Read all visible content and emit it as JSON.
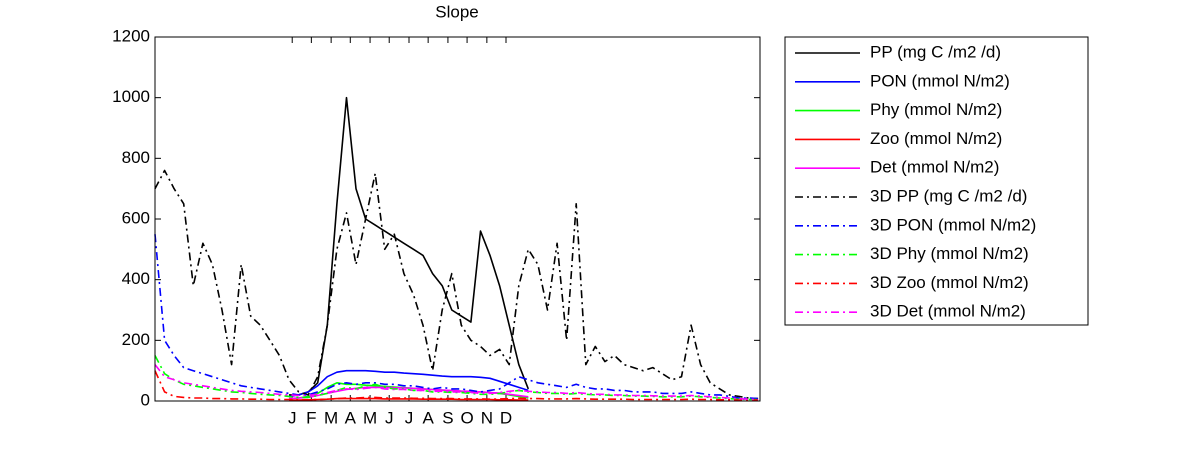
{
  "chart_data": {
    "type": "line",
    "title": "Slope",
    "x": [
      0,
      15,
      30,
      45,
      60,
      75,
      90,
      105,
      120,
      135,
      150,
      165,
      180,
      195,
      210,
      225,
      240,
      255,
      270,
      285,
      300,
      315,
      330,
      345,
      360,
      375,
      390,
      405,
      420,
      435,
      450,
      465,
      480,
      495,
      510,
      525,
      540,
      555,
      570,
      585,
      600,
      615,
      630,
      645,
      660,
      675,
      690,
      705,
      720,
      735,
      750,
      765,
      780,
      795,
      810,
      825,
      840,
      855,
      870,
      885,
      900,
      915,
      930,
      945
    ],
    "xlim": [
      0,
      948
    ],
    "xticks": [
      {
        "value": 215,
        "label": "J"
      },
      {
        "value": 245,
        "label": "F"
      },
      {
        "value": 276,
        "label": "M"
      },
      {
        "value": 306,
        "label": "A"
      },
      {
        "value": 337,
        "label": "M"
      },
      {
        "value": 367,
        "label": "J"
      },
      {
        "value": 398,
        "label": "J"
      },
      {
        "value": 428,
        "label": "A"
      },
      {
        "value": 459,
        "label": "S"
      },
      {
        "value": 489,
        "label": "O"
      },
      {
        "value": 520,
        "label": "N"
      },
      {
        "value": 550,
        "label": "D"
      }
    ],
    "ylim": [
      0,
      1200
    ],
    "yticks": [
      0,
      200,
      400,
      600,
      800,
      1000,
      1200
    ],
    "grid": false,
    "legend": "outside-right",
    "series": [
      {
        "name": "PP (mg C /m2 /d)",
        "color": "#000000",
        "dash": "solid",
        "values": [
          null,
          null,
          null,
          null,
          null,
          null,
          null,
          null,
          null,
          null,
          null,
          null,
          null,
          null,
          20,
          20,
          30,
          60,
          250,
          650,
          1000,
          700,
          600,
          580,
          560,
          540,
          520,
          500,
          480,
          420,
          380,
          300,
          280,
          260,
          560,
          480,
          380,
          250,
          120,
          40,
          null,
          null,
          null,
          null,
          null,
          null,
          null,
          null,
          null,
          null,
          null,
          null,
          null,
          null,
          null,
          null,
          null,
          null,
          null,
          null,
          null,
          null,
          null,
          null
        ]
      },
      {
        "name": "PON (mmol N/m2)",
        "color": "#0000ff",
        "dash": "solid",
        "values": [
          null,
          null,
          null,
          null,
          null,
          null,
          null,
          null,
          null,
          null,
          null,
          null,
          null,
          null,
          15,
          20,
          30,
          50,
          80,
          95,
          100,
          100,
          100,
          98,
          95,
          95,
          92,
          90,
          88,
          85,
          82,
          80,
          80,
          80,
          78,
          75,
          65,
          55,
          45,
          35,
          null,
          null,
          null,
          null,
          null,
          null,
          null,
          null,
          null,
          null,
          null,
          null,
          null,
          null,
          null,
          null,
          null,
          null,
          null,
          null,
          null,
          null,
          null,
          null
        ]
      },
      {
        "name": "Phy (mmol N/m2)",
        "color": "#00ff00",
        "dash": "solid",
        "values": [
          null,
          null,
          null,
          null,
          null,
          null,
          null,
          null,
          null,
          null,
          null,
          null,
          null,
          null,
          8,
          10,
          15,
          25,
          45,
          60,
          55,
          55,
          52,
          50,
          48,
          46,
          44,
          42,
          40,
          38,
          36,
          34,
          32,
          30,
          30,
          28,
          25,
          20,
          15,
          10,
          null,
          null,
          null,
          null,
          null,
          null,
          null,
          null,
          null,
          null,
          null,
          null,
          null,
          null,
          null,
          null,
          null,
          null,
          null,
          null,
          null,
          null,
          null,
          null
        ]
      },
      {
        "name": "Zoo (mmol N/m2)",
        "color": "#ff0000",
        "dash": "solid",
        "values": [
          null,
          null,
          null,
          null,
          null,
          null,
          null,
          null,
          null,
          null,
          null,
          null,
          null,
          null,
          3,
          3,
          4,
          5,
          6,
          8,
          8,
          8,
          8,
          8,
          7,
          7,
          7,
          7,
          6,
          6,
          6,
          6,
          5,
          5,
          5,
          5,
          4,
          4,
          3,
          3,
          null,
          null,
          null,
          null,
          null,
          null,
          null,
          null,
          null,
          null,
          null,
          null,
          null,
          null,
          null,
          null,
          null,
          null,
          null,
          null,
          null,
          null,
          null,
          null
        ]
      },
      {
        "name": "Det (mmol N/m2)",
        "color": "#ff00ff",
        "dash": "solid",
        "values": [
          null,
          null,
          null,
          null,
          null,
          null,
          null,
          null,
          null,
          null,
          null,
          null,
          null,
          null,
          8,
          10,
          12,
          18,
          25,
          32,
          38,
          42,
          45,
          45,
          45,
          44,
          43,
          42,
          40,
          38,
          36,
          35,
          33,
          32,
          30,
          28,
          26,
          22,
          18,
          14,
          null,
          null,
          null,
          null,
          null,
          null,
          null,
          null,
          null,
          null,
          null,
          null,
          null,
          null,
          null,
          null,
          null,
          null,
          null,
          null,
          null,
          null,
          null,
          null
        ]
      },
      {
        "name": "3D PP (mg C /m2 /d)",
        "color": "#000000",
        "dash": "dashdot",
        "values": [
          700,
          760,
          700,
          650,
          380,
          520,
          450,
          300,
          120,
          450,
          280,
          250,
          200,
          150,
          70,
          30,
          20,
          80,
          250,
          500,
          620,
          450,
          600,
          750,
          500,
          550,
          420,
          350,
          250,
          100,
          300,
          420,
          250,
          200,
          180,
          150,
          170,
          120,
          380,
          500,
          450,
          300,
          520,
          200,
          650,
          120,
          180,
          130,
          150,
          120,
          110,
          100,
          110,
          90,
          70,
          80,
          250,
          120,
          60,
          40,
          20,
          15,
          10,
          8
        ]
      },
      {
        "name": "3D PON (mmol N/m2)",
        "color": "#0000ff",
        "dash": "dashdot",
        "values": [
          550,
          200,
          150,
          110,
          100,
          90,
          80,
          70,
          60,
          50,
          45,
          40,
          35,
          30,
          25,
          20,
          20,
          30,
          40,
          55,
          60,
          55,
          60,
          60,
          55,
          55,
          50,
          50,
          45,
          40,
          45,
          40,
          40,
          35,
          30,
          35,
          40,
          60,
          80,
          70,
          60,
          55,
          50,
          45,
          55,
          45,
          40,
          40,
          35,
          35,
          30,
          30,
          30,
          25,
          25,
          25,
          30,
          25,
          20,
          20,
          15,
          10,
          10,
          8
        ]
      },
      {
        "name": "3D Phy (mmol N/m2)",
        "color": "#00ff00",
        "dash": "dashdot",
        "values": [
          150,
          90,
          70,
          55,
          50,
          45,
          40,
          35,
          30,
          28,
          25,
          22,
          20,
          18,
          15,
          12,
          12,
          18,
          25,
          35,
          45,
          40,
          50,
          55,
          45,
          40,
          40,
          35,
          35,
          30,
          30,
          28,
          28,
          25,
          22,
          22,
          25,
          30,
          35,
          30,
          28,
          25,
          25,
          22,
          25,
          22,
          20,
          20,
          18,
          18,
          16,
          16,
          15,
          14,
          14,
          14,
          16,
          14,
          12,
          10,
          8,
          6,
          5,
          5
        ]
      },
      {
        "name": "3D Zoo (mmol N/m2)",
        "color": "#ff0000",
        "dash": "dashdot",
        "values": [
          100,
          30,
          15,
          12,
          10,
          10,
          8,
          8,
          7,
          7,
          6,
          6,
          5,
          5,
          5,
          4,
          4,
          5,
          6,
          8,
          10,
          10,
          12,
          12,
          10,
          10,
          10,
          9,
          9,
          8,
          8,
          8,
          7,
          7,
          7,
          6,
          7,
          8,
          9,
          8,
          8,
          7,
          7,
          7,
          8,
          7,
          6,
          6,
          6,
          6,
          5,
          5,
          5,
          5,
          5,
          5,
          6,
          5,
          5,
          4,
          4,
          3,
          3,
          3
        ]
      },
      {
        "name": "3D Det (mmol N/m2)",
        "color": "#ff00ff",
        "dash": "dashdot",
        "values": [
          120,
          80,
          70,
          60,
          55,
          50,
          45,
          40,
          35,
          32,
          30,
          28,
          25,
          22,
          20,
          18,
          18,
          22,
          28,
          35,
          40,
          38,
          42,
          45,
          40,
          38,
          38,
          35,
          35,
          32,
          32,
          30,
          30,
          28,
          25,
          25,
          28,
          32,
          36,
          32,
          30,
          28,
          28,
          25,
          28,
          25,
          22,
          22,
          20,
          20,
          18,
          18,
          17,
          16,
          16,
          16,
          18,
          16,
          14,
          12,
          10,
          8,
          6,
          5
        ]
      }
    ]
  }
}
